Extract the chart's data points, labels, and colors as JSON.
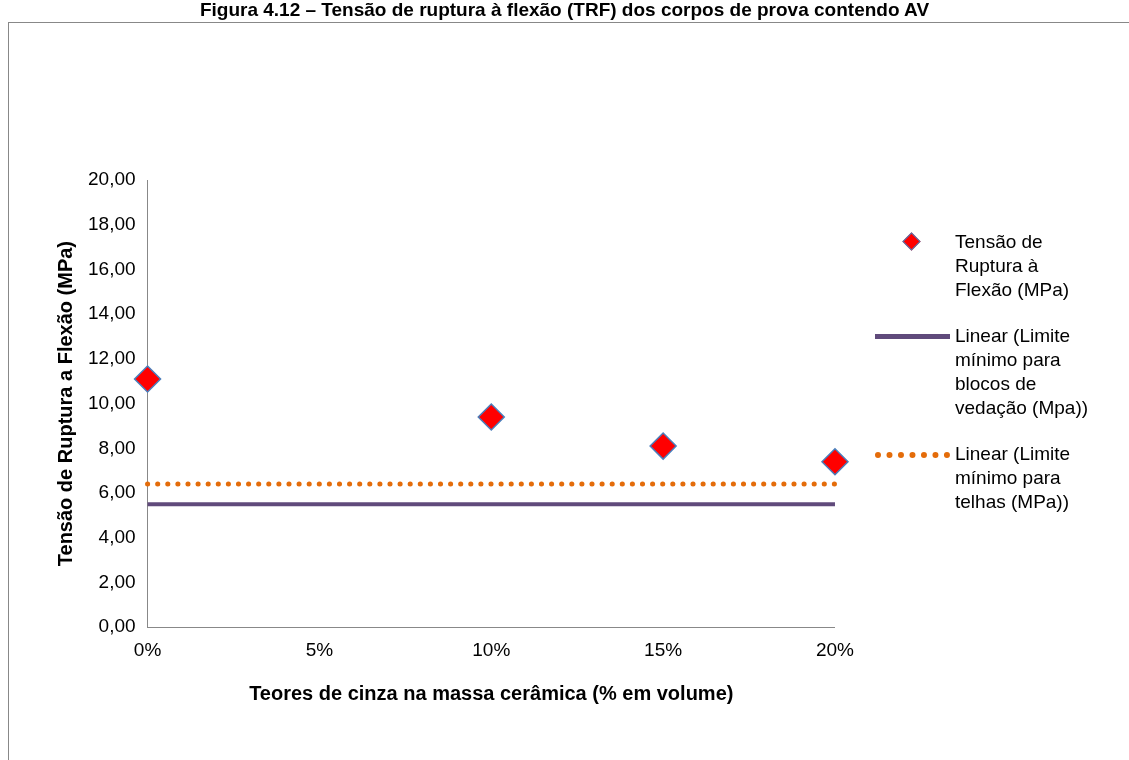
{
  "chart_data": {
    "type": "scatter",
    "title": "Figura 4.12 – Tensão de ruptura à flexão (TRF) dos corpos de prova contendo AV",
    "xlabel": "Teores de cinza na massa cerâmica (% em volume)",
    "ylabel": "Tensão de Ruptura a Flexão (MPa)",
    "xlim": [
      0,
      20
    ],
    "xticks": [
      {
        "value": 0,
        "label": "0%"
      },
      {
        "value": 5,
        "label": "5%"
      },
      {
        "value": 10,
        "label": "10%"
      },
      {
        "value": 15,
        "label": "15%"
      },
      {
        "value": 20,
        "label": "20%"
      }
    ],
    "ylim": [
      0,
      20
    ],
    "yticks": [
      {
        "value": 0,
        "label": "0,00"
      },
      {
        "value": 2,
        "label": "2,00"
      },
      {
        "value": 4,
        "label": "4,00"
      },
      {
        "value": 6,
        "label": "6,00"
      },
      {
        "value": 8,
        "label": "8,00"
      },
      {
        "value": 10,
        "label": "10,00"
      },
      {
        "value": 12,
        "label": "12,00"
      },
      {
        "value": 14,
        "label": "14,00"
      },
      {
        "value": 16,
        "label": "16,00"
      },
      {
        "value": 18,
        "label": "18,00"
      },
      {
        "value": 20,
        "label": "20,00"
      }
    ],
    "grid": false,
    "legend": "right",
    "series": [
      {
        "name": "Tensão de Ruptura à Flexão (MPa)",
        "marker": "diamond",
        "color": "#ff0000",
        "x": [
          0,
          10,
          15,
          20
        ],
        "values": [
          11.1,
          9.4,
          8.1,
          7.4
        ]
      },
      {
        "name": "Linear (Limite mínimo para blocos de vedação (Mpa))",
        "type": "line",
        "marker": "none",
        "line_style": "solid",
        "color": "#604a7b",
        "x": [
          0,
          20
        ],
        "values": [
          5.5,
          5.5
        ]
      },
      {
        "name": "Linear (Limite mínimo para telhas (MPa))",
        "type": "line",
        "marker": "none",
        "line_style": "dotted",
        "color": "#e46c0a",
        "x": [
          0,
          20
        ],
        "values": [
          6.4,
          6.4
        ]
      }
    ]
  }
}
